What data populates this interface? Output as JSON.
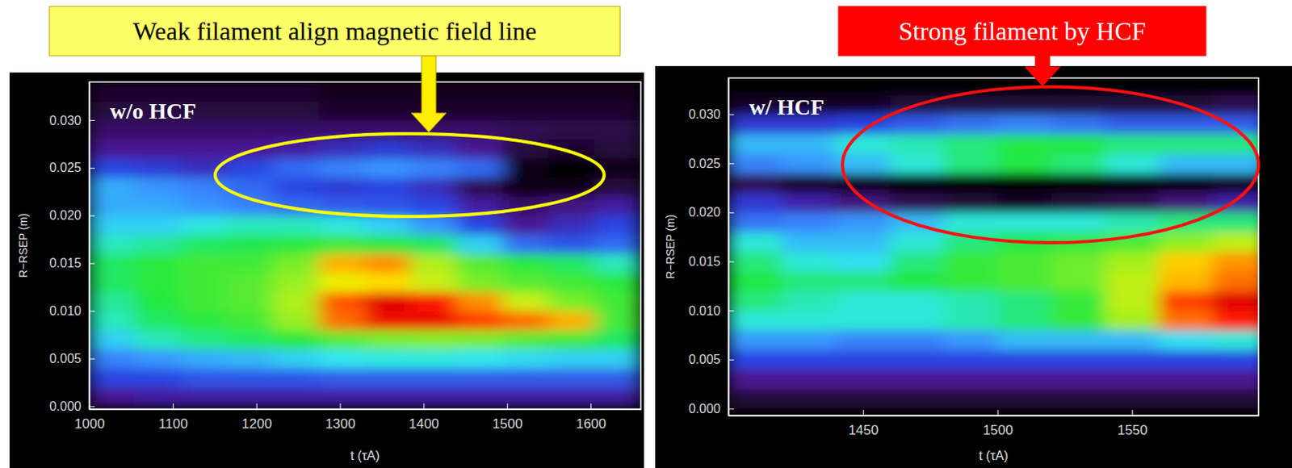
{
  "chart_data": [
    {
      "type": "heatmap",
      "title": "w/o HCF",
      "annotation": "Weak filament align magnetic field line",
      "x_label": "t (τA)",
      "y_label": "R−RSEP (m)",
      "x": [
        1027.5,
        1082.5,
        1137.5,
        1192.5,
        1247.5,
        1302.5,
        1357.5,
        1412.5,
        1467.5,
        1522.5,
        1577.5,
        1632.5
      ],
      "y": [
        0.001,
        0.003,
        0.005,
        0.007,
        0.009,
        0.011,
        0.013,
        0.015,
        0.017,
        0.019,
        0.021,
        0.023,
        0.025,
        0.027,
        0.029,
        0.031,
        0.033
      ],
      "cells": [
        [
          0.2,
          0.22,
          0.22,
          0.22,
          0.22,
          0.22,
          0.22,
          0.22,
          0.22,
          0.22,
          0.22,
          0.22
        ],
        [
          0.3,
          0.3,
          0.32,
          0.32,
          0.32,
          0.33,
          0.33,
          0.33,
          0.33,
          0.33,
          0.33,
          0.33
        ],
        [
          0.38,
          0.4,
          0.42,
          0.43,
          0.45,
          0.47,
          0.48,
          0.48,
          0.47,
          0.46,
          0.45,
          0.45
        ],
        [
          0.45,
          0.5,
          0.53,
          0.55,
          0.58,
          0.62,
          0.65,
          0.66,
          0.65,
          0.62,
          0.6,
          0.55
        ],
        [
          0.5,
          0.55,
          0.58,
          0.6,
          0.68,
          0.88,
          0.98,
          0.98,
          0.92,
          0.88,
          0.82,
          0.6
        ],
        [
          0.52,
          0.57,
          0.6,
          0.62,
          0.7,
          0.9,
          1.0,
          0.96,
          0.85,
          0.72,
          0.65,
          0.6
        ],
        [
          0.55,
          0.58,
          0.6,
          0.62,
          0.68,
          0.75,
          0.78,
          0.72,
          0.65,
          0.62,
          0.6,
          0.58
        ],
        [
          0.55,
          0.58,
          0.6,
          0.6,
          0.65,
          0.82,
          0.85,
          0.7,
          0.62,
          0.58,
          0.55,
          0.5
        ],
        [
          0.5,
          0.52,
          0.55,
          0.56,
          0.58,
          0.6,
          0.58,
          0.55,
          0.45,
          0.35,
          0.32,
          0.35
        ],
        [
          0.45,
          0.45,
          0.48,
          0.5,
          0.5,
          0.48,
          0.45,
          0.4,
          0.3,
          0.2,
          0.25,
          0.3
        ],
        [
          0.42,
          0.42,
          0.4,
          0.38,
          0.35,
          0.33,
          0.32,
          0.3,
          0.22,
          0.15,
          0.18,
          0.22
        ],
        [
          0.42,
          0.4,
          0.38,
          0.35,
          0.3,
          0.28,
          0.3,
          0.25,
          0.12,
          0.05,
          0.05,
          0.1
        ],
        [
          0.3,
          0.28,
          0.25,
          0.3,
          0.35,
          0.38,
          0.4,
          0.38,
          0.35,
          0.05,
          0.02,
          0.05
        ],
        [
          0.2,
          0.2,
          0.2,
          0.2,
          0.22,
          0.25,
          0.28,
          0.25,
          0.2,
          0.1,
          0.08,
          0.1
        ],
        [
          0.15,
          0.15,
          0.15,
          0.15,
          0.15,
          0.15,
          0.15,
          0.15,
          0.15,
          0.13,
          0.12,
          0.12
        ],
        [
          0.1,
          0.1,
          0.1,
          0.1,
          0.1,
          0.08,
          0.08,
          0.08,
          0.08,
          0.08,
          0.08,
          0.08
        ],
        [
          0.08,
          0.08,
          0.08,
          0.08,
          0.08,
          0.06,
          0.06,
          0.06,
          0.06,
          0.06,
          0.06,
          0.06
        ]
      ],
      "xlim": [
        1000,
        1660
      ],
      "ylim": [
        -0.0003,
        0.034
      ],
      "xticks": [
        1000,
        1100,
        1200,
        1300,
        1400,
        1500,
        1600
      ],
      "yticks": [
        {
          "value": 0,
          "label": "0.000"
        },
        {
          "value": 0.005,
          "label": "0.005"
        },
        {
          "value": 0.01,
          "label": "0.010"
        },
        {
          "value": 0.015,
          "label": "0.015"
        },
        {
          "value": 0.02,
          "label": "0.020"
        },
        {
          "value": 0.025,
          "label": "0.025"
        },
        {
          "value": 0.03,
          "label": "0.030"
        }
      ]
    },
    {
      "type": "heatmap",
      "title": "w/ HCF",
      "annotation": "Strong filament by HCF",
      "x_label": "t (τA)",
      "y_label": "R−RSEP (m)",
      "x": [
        1410,
        1430,
        1450,
        1470,
        1490,
        1510,
        1530,
        1550,
        1570,
        1590
      ],
      "y": [
        0.001,
        0.003,
        0.005,
        0.007,
        0.009,
        0.011,
        0.013,
        0.015,
        0.017,
        0.019,
        0.021,
        0.023,
        0.025,
        0.027,
        0.029,
        0.031,
        0.033
      ],
      "cells": [
        [
          0.12,
          0.12,
          0.12,
          0.12,
          0.12,
          0.12,
          0.12,
          0.12,
          0.12,
          0.12
        ],
        [
          0.22,
          0.22,
          0.22,
          0.22,
          0.22,
          0.22,
          0.22,
          0.22,
          0.22,
          0.22
        ],
        [
          0.32,
          0.32,
          0.32,
          0.32,
          0.32,
          0.32,
          0.32,
          0.32,
          0.32,
          0.32
        ],
        [
          0.42,
          0.42,
          0.4,
          0.4,
          0.42,
          0.45,
          0.45,
          0.45,
          0.48,
          0.5
        ],
        [
          0.5,
          0.5,
          0.5,
          0.5,
          0.52,
          0.55,
          0.6,
          0.7,
          0.88,
          0.95
        ],
        [
          0.55,
          0.52,
          0.5,
          0.5,
          0.52,
          0.55,
          0.6,
          0.72,
          0.92,
          1.0
        ],
        [
          0.58,
          0.55,
          0.55,
          0.58,
          0.6,
          0.62,
          0.65,
          0.72,
          0.82,
          0.88
        ],
        [
          0.55,
          0.5,
          0.48,
          0.55,
          0.6,
          0.62,
          0.65,
          0.7,
          0.8,
          0.85
        ],
        [
          0.5,
          0.45,
          0.45,
          0.5,
          0.55,
          0.58,
          0.6,
          0.62,
          0.68,
          0.72
        ],
        [
          0.38,
          0.4,
          0.42,
          0.45,
          0.5,
          0.5,
          0.5,
          0.52,
          0.55,
          0.55
        ],
        [
          0.3,
          0.25,
          0.2,
          0.15,
          0.12,
          0.1,
          0.12,
          0.15,
          0.2,
          0.25
        ],
        [
          0.15,
          0.1,
          0.08,
          0.05,
          0.05,
          0.05,
          0.05,
          0.05,
          0.05,
          0.08
        ],
        [
          0.4,
          0.42,
          0.45,
          0.5,
          0.55,
          0.58,
          0.55,
          0.5,
          0.45,
          0.45
        ],
        [
          0.45,
          0.45,
          0.5,
          0.52,
          0.55,
          0.58,
          0.58,
          0.55,
          0.55,
          0.55
        ],
        [
          0.3,
          0.3,
          0.32,
          0.35,
          0.38,
          0.4,
          0.38,
          0.35,
          0.35,
          0.35
        ],
        [
          0.1,
          0.1,
          0.1,
          0.12,
          0.12,
          0.12,
          0.12,
          0.12,
          0.12,
          0.15
        ],
        [
          0.05,
          0.05,
          0.05,
          0.05,
          0.05,
          0.05,
          0.05,
          0.05,
          0.05,
          0.05
        ]
      ],
      "xlim": [
        1400,
        1597
      ],
      "ylim": [
        -0.0007,
        0.0337
      ],
      "xticks": [
        1450,
        1500,
        1550
      ],
      "yticks": [
        {
          "value": 0,
          "label": "0.000"
        },
        {
          "value": 0.005,
          "label": "0.005"
        },
        {
          "value": 0.01,
          "label": "0.010"
        },
        {
          "value": 0.015,
          "label": "0.015"
        },
        {
          "value": 0.02,
          "label": "0.020"
        },
        {
          "value": 0.025,
          "label": "0.025"
        },
        {
          "value": 0.03,
          "label": "0.030"
        }
      ]
    }
  ]
}
